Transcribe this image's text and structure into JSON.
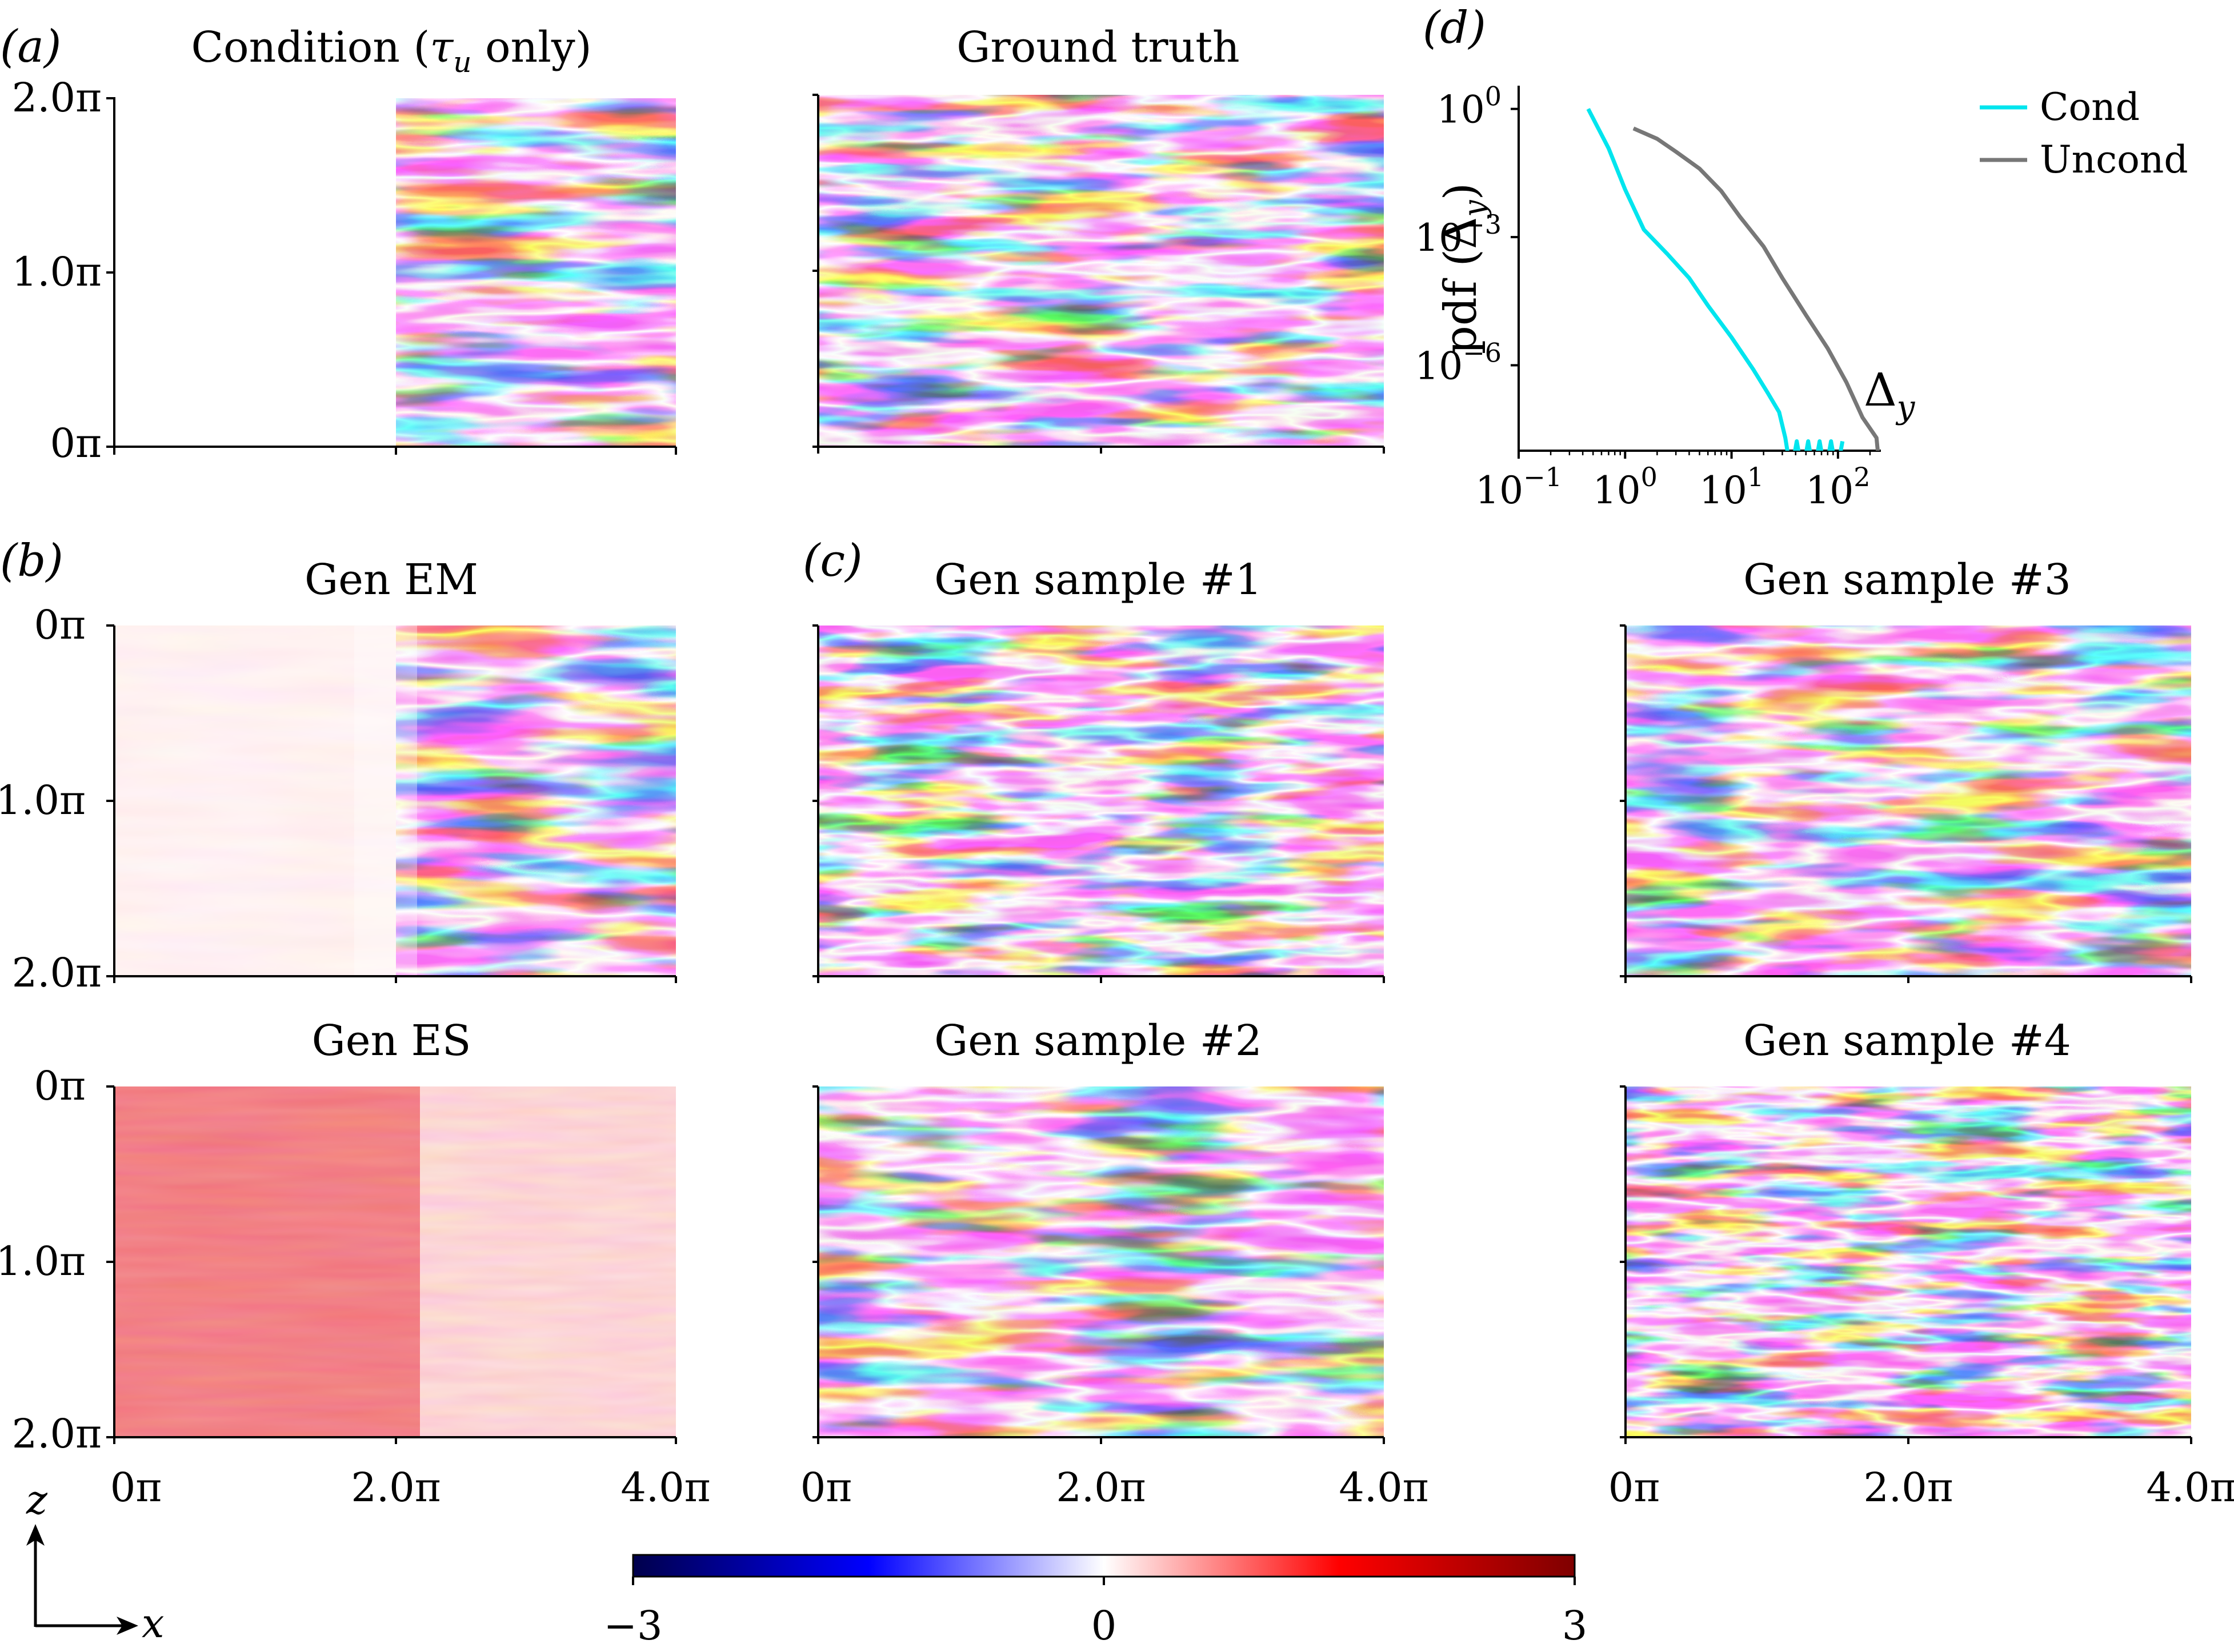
{
  "panel_labels": {
    "a": "(a)",
    "b": "(b)",
    "c": "(c)",
    "d": "(d)"
  },
  "fields": {
    "condition": {
      "title": "Condition (τᵤ only)",
      "title_main": "Condition (",
      "title_sym": "τ",
      "title_sub": "u",
      "title_end": " only)"
    },
    "ground_truth": {
      "title": "Ground truth"
    },
    "gen_em": {
      "title": "Gen EM"
    },
    "gen_es": {
      "title": "Gen ES"
    },
    "sample1": {
      "title": "Gen sample #1"
    },
    "sample2": {
      "title": "Gen sample #2"
    },
    "sample3": {
      "title": "Gen sample #3"
    },
    "sample4": {
      "title": "Gen sample #4"
    }
  },
  "axes": {
    "x_ticks": [
      "0π",
      "2.0π",
      "4.0π"
    ],
    "z_ticks_top": [
      "2.0π",
      "1.0π",
      "0π"
    ],
    "z_ticks_flipped": [
      "0π",
      "1.0π",
      "2.0π"
    ],
    "axis_z": "z",
    "axis_x": "x"
  },
  "colorbar": {
    "min_label": "−3",
    "mid_label": "0",
    "max_label": "3",
    "colors": [
      "#00004c",
      "#0000ff",
      "#ffffff",
      "#ff0000",
      "#7f0000"
    ]
  },
  "colors": {
    "red": "#e0201e",
    "blue": "#1a2adc",
    "cond": "#00e5ee",
    "uncond": "#777777"
  },
  "chart_data": {
    "type": "line",
    "title": "",
    "xlabel": "Δy",
    "xlabel_main": "Δ",
    "xlabel_sub": "y",
    "ylabel": "pdf (Δy)",
    "ylabel_main": "pdf (Δ",
    "ylabel_sub": "y",
    "ylabel_end": ")",
    "xscale": "log",
    "yscale": "log",
    "xlim": [
      0.1,
      250
    ],
    "ylim": [
      1e-08,
      3
    ],
    "x_tick_labels": [
      {
        "base": "10",
        "exp": "−1",
        "value": 0.1
      },
      {
        "base": "10",
        "exp": "0",
        "value": 1
      },
      {
        "base": "10",
        "exp": "1",
        "value": 10
      },
      {
        "base": "10",
        "exp": "2",
        "value": 100
      }
    ],
    "y_tick_labels": [
      {
        "base": "10",
        "exp": "0",
        "value": 1
      },
      {
        "base": "10",
        "exp": "−3",
        "value": 0.001
      },
      {
        "base": "10",
        "exp": "−6",
        "value": 1e-06
      }
    ],
    "legend_position": "top-right",
    "series": [
      {
        "name": "Cond",
        "color": "#00e5ee",
        "x": [
          0.45,
          0.7,
          1.0,
          1.5,
          2.5,
          4,
          6,
          10,
          16,
          22,
          28,
          32
        ],
        "y": [
          1.0,
          0.12,
          0.013,
          0.0015,
          0.0004,
          0.00011,
          2.5e-05,
          4.5e-06,
          8e-07,
          2.2e-07,
          8e-08,
          2e-08
        ]
      },
      {
        "name": "Uncond",
        "color": "#777777",
        "x": [
          1.2,
          2,
          3,
          5,
          8,
          12,
          20,
          30,
          50,
          80,
          120,
          170,
          230
        ],
        "y": [
          0.35,
          0.2,
          0.1,
          0.04,
          0.012,
          0.003,
          0.0006,
          0.00011,
          1.5e-05,
          2.5e-06,
          4e-07,
          6e-08,
          2e-08
        ]
      }
    ]
  }
}
